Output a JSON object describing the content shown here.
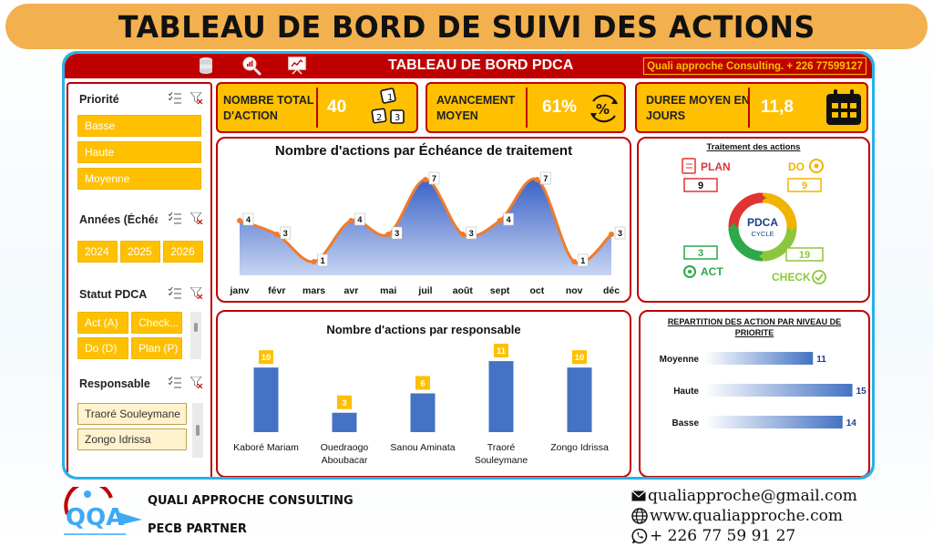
{
  "banner": {
    "title": "TABLEAU DE BORD DE SUIVI DES ACTIONS"
  },
  "header": {
    "title": "TABLEAU DE BORD PDCA",
    "contact": "Quali approche Consulting. + 226 77599127",
    "icons": [
      "database-icon",
      "search-chart-icon",
      "presentation-icon"
    ]
  },
  "slicers": {
    "priorite": {
      "title": "Priorité",
      "items": [
        "Basse",
        "Haute",
        "Moyenne"
      ]
    },
    "annees": {
      "title": "Années (Échéa...",
      "items": [
        "2024",
        "2025",
        "2026"
      ]
    },
    "statut": {
      "title": "Statut PDCA",
      "items": [
        "Act (A)",
        "Check...",
        "Do (D)",
        "Plan (P)"
      ]
    },
    "responsable": {
      "title": "Responsable",
      "items": [
        "Traoré Souleymane",
        "Zongo Idrissa"
      ]
    }
  },
  "kpis": {
    "total": {
      "label_line1": "NOMBRE TOTAL",
      "label_line2": "D'ACTION",
      "value": "40"
    },
    "avancement": {
      "label_line1": "AVANCEMENT",
      "label_line2": "MOYEN",
      "value": "61%",
      "icon_text": "%"
    },
    "duree": {
      "label_line1": "DUREE MOYEN EN",
      "label_line2": "JOURS",
      "value": "11,8"
    }
  },
  "chart_data": [
    {
      "type": "area",
      "title": "Nombre d'actions par Échéance de traitement",
      "categories": [
        "janv",
        "févr",
        "mars",
        "avr",
        "mai",
        "juil",
        "août",
        "sept",
        "oct",
        "nov",
        "déc"
      ],
      "values": [
        4,
        3,
        1,
        4,
        3,
        7,
        3,
        4,
        7,
        1,
        3
      ],
      "ylim": [
        0,
        8
      ],
      "colors": {
        "fill": "#3a62c6",
        "line": "#f07b2c"
      }
    },
    {
      "type": "bar",
      "title": "Nombre d'actions par responsable",
      "categories": [
        "Kaboré Mariam",
        "Ouedraogo Aboubacar",
        "Sanou Aminata",
        "Traoré Souleymane",
        "Zongo Idrissa"
      ],
      "values": [
        10,
        3,
        6,
        11,
        10
      ],
      "ylim": [
        0,
        12
      ],
      "colors": {
        "bar": "#4472c4",
        "label_bg": "#fec000"
      }
    },
    {
      "type": "bar",
      "orientation": "horizontal",
      "title": "REPARTITION DES ACTION PAR NIVEAU DE PRIORITE",
      "categories": [
        "Moyenne",
        "Haute",
        "Basse"
      ],
      "values": [
        11,
        15,
        14
      ],
      "xlim": [
        0,
        15.5
      ],
      "colors": {
        "bar": "#4472c4"
      }
    }
  ],
  "pdca": {
    "title": "Traitement des actions",
    "plan": {
      "label": "PLAN",
      "value": "9",
      "color": "#e03434"
    },
    "do": {
      "label": "DO",
      "value": "9",
      "color": "#f0b400"
    },
    "act": {
      "label": "ACT",
      "value": "3",
      "color": "#2ea84a"
    },
    "check": {
      "label": "CHECK",
      "value": "19",
      "color": "#8cc63e"
    },
    "center_line1": "PDCA",
    "center_line2": "CYCLE"
  },
  "footer": {
    "logo_text": "QQA",
    "company": "QUALI APPROCHE CONSULTING",
    "partner": "PECB PARTNER",
    "email": "qualiapproche@gmail.com",
    "website": "www.qualiapproche.com",
    "phone": "+ 226 77 59 91 27"
  }
}
